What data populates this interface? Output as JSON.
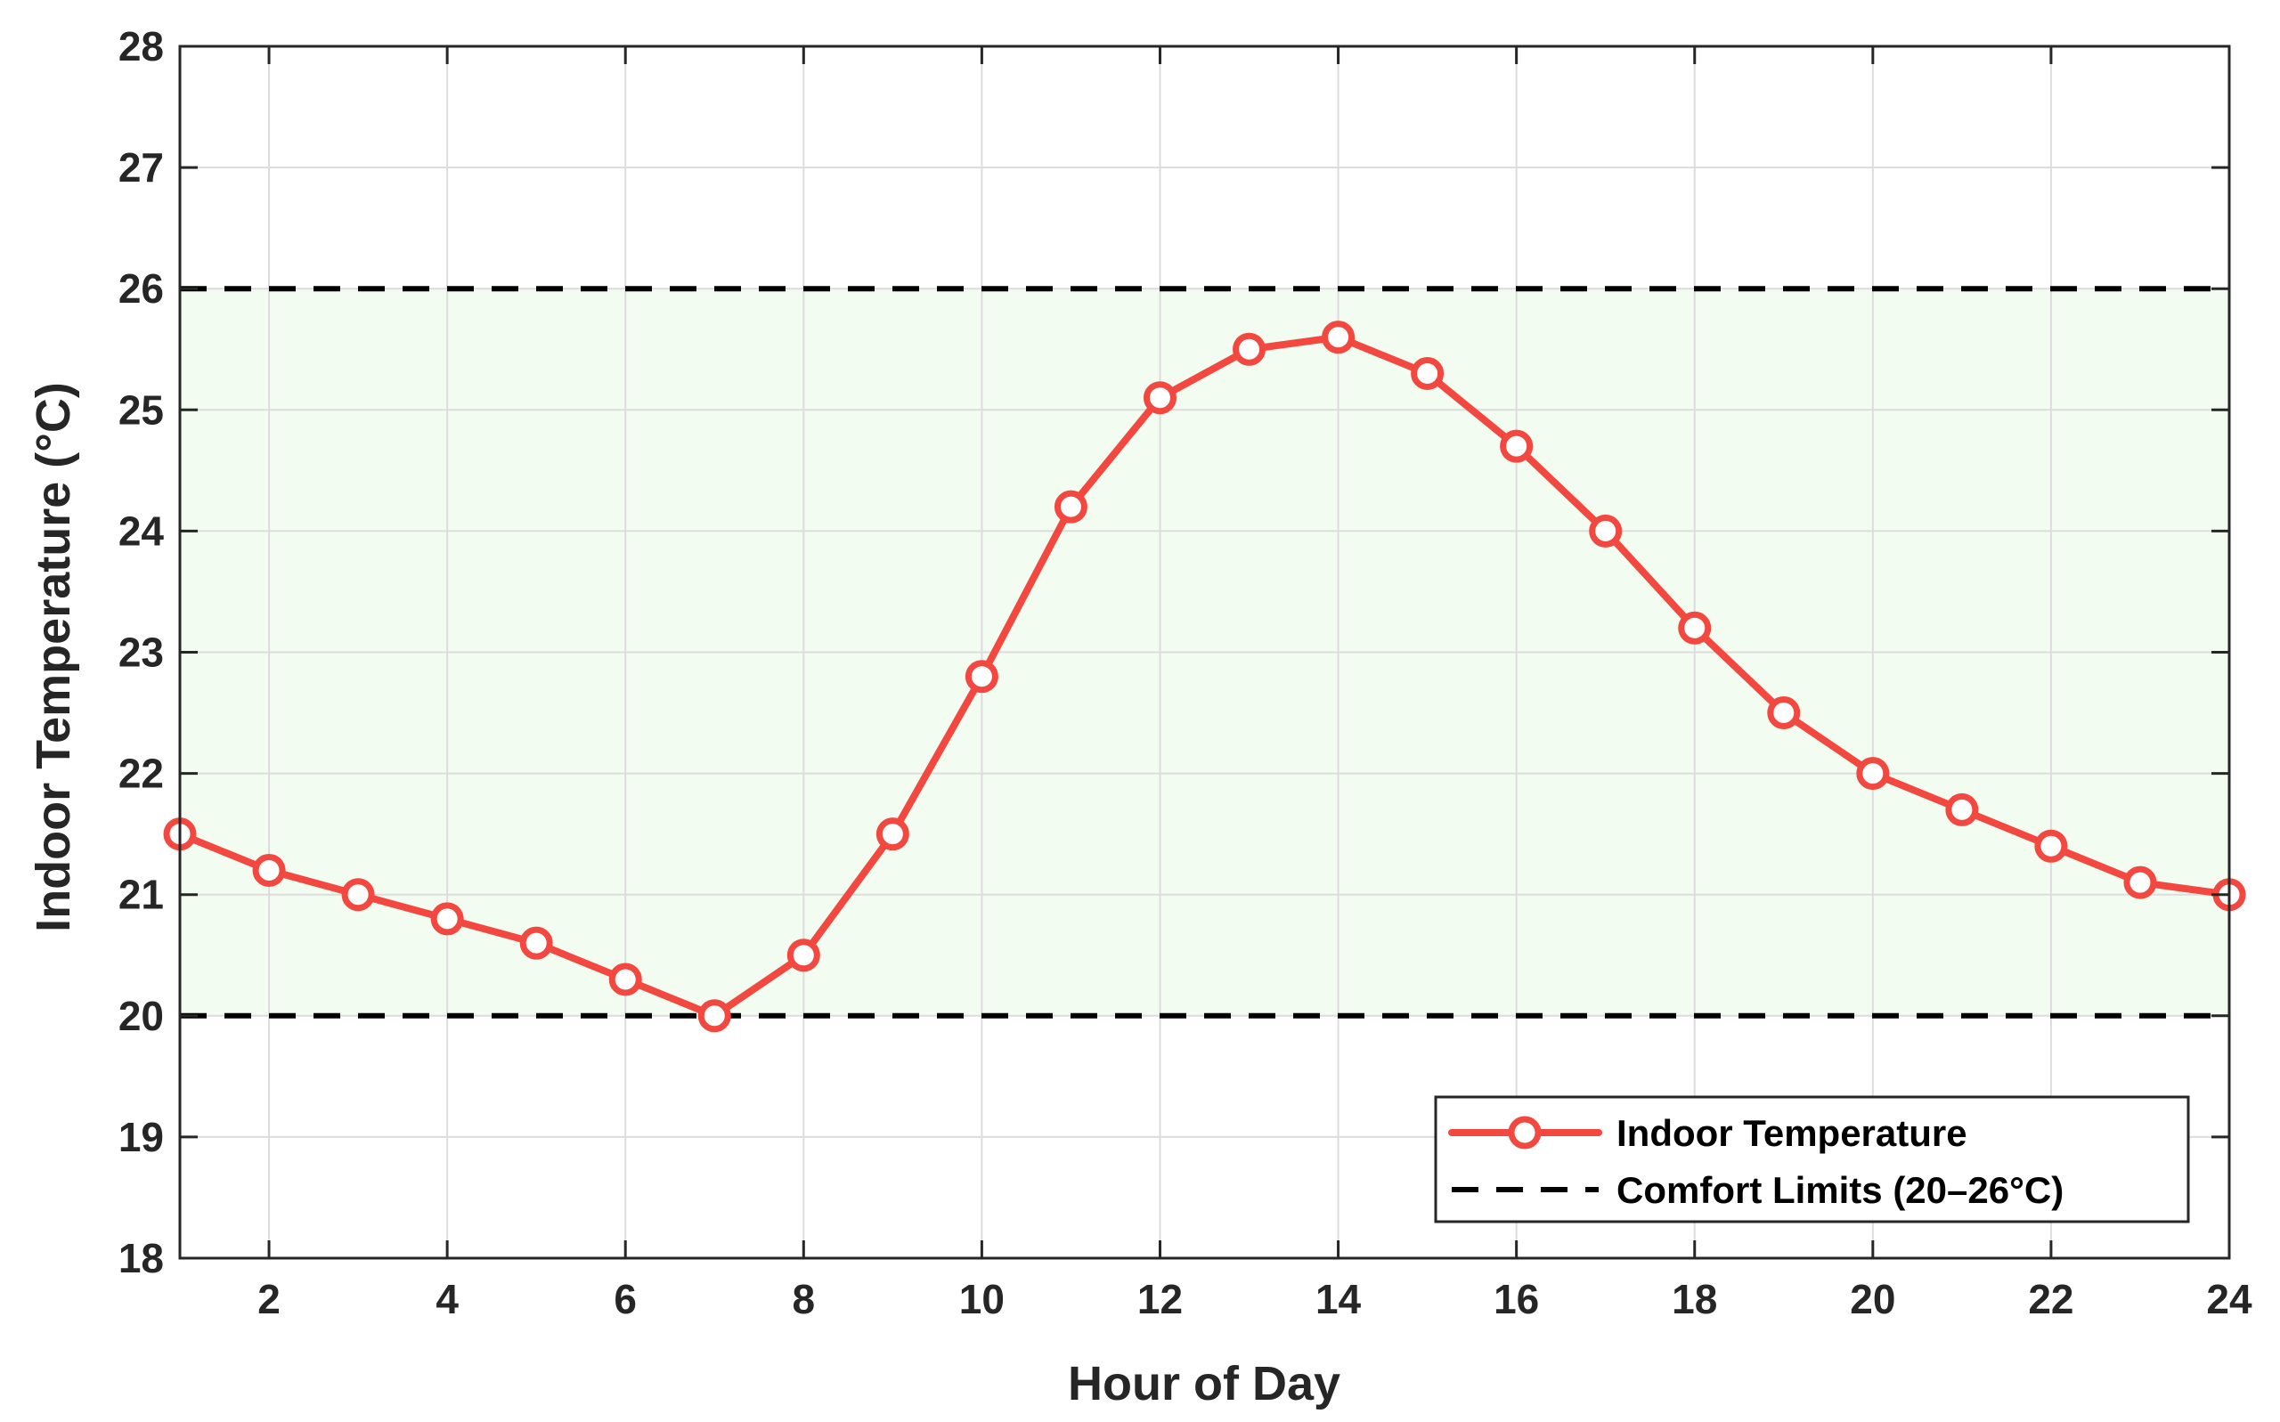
{
  "chart_data": {
    "type": "line",
    "title": "",
    "xlabel": "Hour of Day",
    "ylabel": "Indoor Temperature (°C)",
    "xlim": [
      1,
      24
    ],
    "ylim": [
      18,
      28
    ],
    "x_ticks": [
      2,
      4,
      6,
      8,
      10,
      12,
      14,
      16,
      18,
      20,
      22,
      24
    ],
    "y_ticks": [
      18,
      19,
      20,
      21,
      22,
      23,
      24,
      25,
      26,
      27,
      28
    ],
    "grid": true,
    "legend_position": "bottom-right",
    "comfort_band": {
      "lower": 20,
      "upper": 26,
      "fill_color": "#f3fcf1"
    },
    "series": [
      {
        "name": "Indoor Temperature",
        "color": "#f2483f",
        "marker": "circle",
        "x": [
          1,
          2,
          3,
          4,
          5,
          6,
          7,
          8,
          9,
          10,
          11,
          12,
          13,
          14,
          15,
          16,
          17,
          18,
          19,
          20,
          21,
          22,
          23,
          24
        ],
        "values": [
          21.5,
          21.2,
          21.0,
          20.8,
          20.6,
          20.3,
          20.0,
          20.5,
          21.5,
          22.8,
          24.2,
          25.1,
          25.5,
          25.6,
          25.3,
          24.7,
          24.0,
          23.2,
          22.5,
          22.0,
          21.7,
          21.4,
          21.1,
          21.0
        ]
      },
      {
        "name": "Comfort Limits (20–26°C)",
        "color": "#000000",
        "style": "dashed",
        "levels": [
          20,
          26
        ]
      }
    ]
  }
}
